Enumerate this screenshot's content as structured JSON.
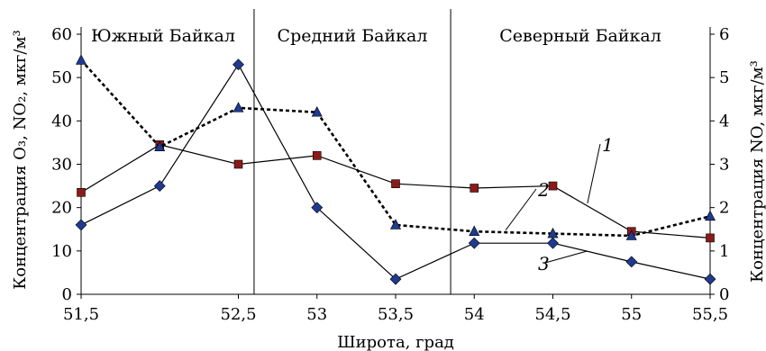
{
  "chart_data": {
    "type": "line",
    "xlabel": "Широта, град",
    "ylabel_left": "Концентрация O₃, NO₂, мкг/м³",
    "ylabel_right": "Концентрация NO, мкг/м³",
    "x_ticks": [
      "51,5",
      "52,5",
      "53",
      "53,5",
      "54",
      "54,5",
      "55",
      "55,5"
    ],
    "y_left_ticks": [
      "0",
      "10",
      "20",
      "30",
      "40",
      "50",
      "60"
    ],
    "y_right_ticks": [
      "0",
      "1",
      "2",
      "3",
      "4",
      "5",
      "6"
    ],
    "ylim_left": [
      0,
      60
    ],
    "ylim_right": [
      0,
      6
    ],
    "regions": [
      {
        "label": "Южный Байкал",
        "x_end": 52.6
      },
      {
        "label": "Средний Байкал",
        "x_end": 53.85
      },
      {
        "label": "Северный Байкал",
        "x_end": 55.5
      }
    ],
    "series": [
      {
        "name": "1",
        "marker": "square",
        "axis": "left",
        "color": "#8b1a1a",
        "x": [
          51.5,
          52.0,
          52.5,
          53.0,
          53.5,
          54.0,
          54.5,
          55.0,
          55.5
        ],
        "y": [
          23.5,
          34.5,
          30,
          32,
          25.5,
          24.5,
          25,
          14.5,
          13
        ]
      },
      {
        "name": "2",
        "marker": "triangle",
        "axis": "left",
        "color": "#1f3a8f",
        "dashed": true,
        "x": [
          51.5,
          52.0,
          52.5,
          53.0,
          53.5,
          54.0,
          54.5,
          55.0,
          55.5
        ],
        "y": [
          54,
          34,
          43,
          42,
          16,
          14.5,
          14,
          13.5,
          18
        ]
      },
      {
        "name": "3",
        "marker": "diamond",
        "axis": "right",
        "color": "#1f3a8f",
        "x": [
          51.5,
          52.0,
          52.5,
          53.0,
          53.5,
          54.0,
          54.5,
          55.0,
          55.5
        ],
        "y": [
          1.6,
          2.5,
          5.3,
          2.0,
          0.35,
          1.18,
          1.18,
          0.75,
          0.35
        ]
      }
    ]
  }
}
